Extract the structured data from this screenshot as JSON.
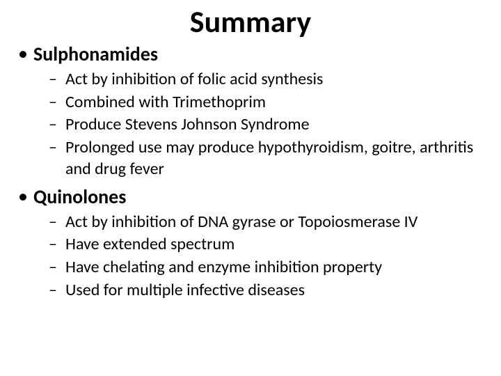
{
  "title": "Summary",
  "sections": [
    {
      "heading": "Sulphonamides",
      "points": [
        "Act by inhibition of folic acid synthesis",
        "Combined with Trimethoprim",
        "Produce Stevens Johnson Syndrome",
        "Prolonged use may produce hypothyroidism, goitre, arthritis and drug fever"
      ]
    },
    {
      "heading": "Quinolones",
      "points": [
        "Act by inhibition of DNA gyrase or Topoiosmerase IV",
        "Have extended spectrum",
        "Have chelating and enzyme inhibition property",
        "Used for multiple infective diseases"
      ]
    }
  ],
  "style": {
    "background_color": "#ffffff",
    "text_color": "#000000",
    "title_fontsize": 44,
    "heading_fontsize": 28,
    "point_fontsize": 24,
    "font_family": "Calibri"
  }
}
